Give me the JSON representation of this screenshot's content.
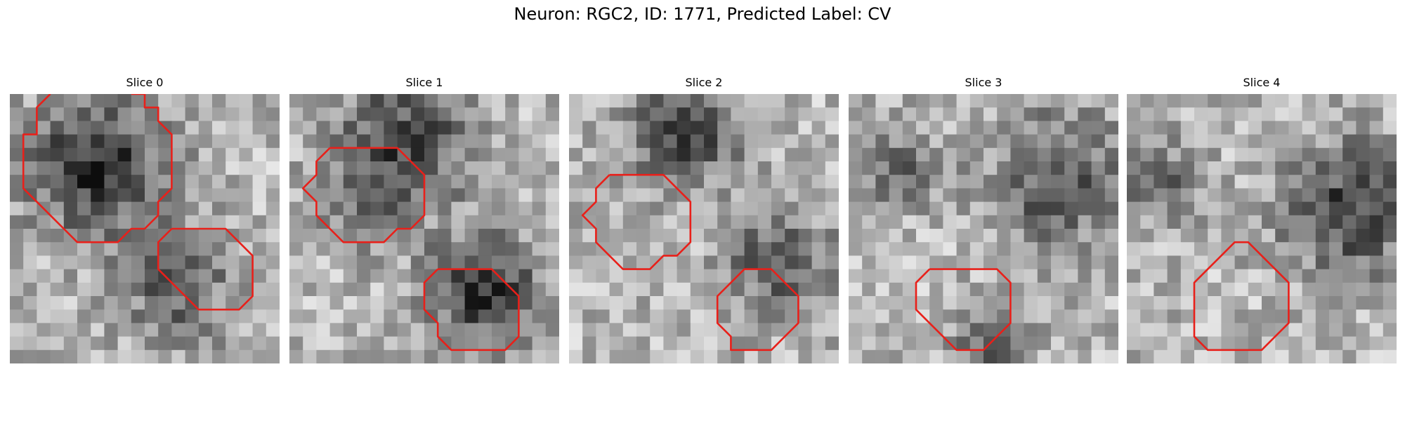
{
  "figure": {
    "title": "Neuron: RGC2, ID: 1771, Predicted Label: CV"
  },
  "colors": {
    "contour": "#e8201a",
    "colormap": "gray"
  },
  "panels": [
    {
      "title": "Slice 0",
      "contours": [
        [
          [
            3,
            0
          ],
          [
            2,
            1
          ],
          [
            2,
            2
          ],
          [
            2,
            3
          ],
          [
            1,
            3
          ],
          [
            1,
            4
          ],
          [
            1,
            5
          ],
          [
            1,
            6
          ],
          [
            1,
            7
          ],
          [
            2,
            8
          ],
          [
            3,
            9
          ],
          [
            4,
            10
          ],
          [
            5,
            11
          ],
          [
            6,
            11
          ],
          [
            7,
            11
          ],
          [
            8,
            11
          ],
          [
            9,
            10
          ],
          [
            10,
            10
          ],
          [
            11,
            9
          ],
          [
            11,
            8
          ],
          [
            12,
            7
          ],
          [
            12,
            6
          ],
          [
            12,
            5
          ],
          [
            12,
            4
          ],
          [
            12,
            3
          ],
          [
            11,
            2
          ],
          [
            11,
            1
          ],
          [
            10,
            1
          ],
          [
            10,
            0
          ],
          [
            9,
            0
          ],
          [
            9,
            0
          ]
        ],
        [
          [
            12,
            10
          ],
          [
            11,
            11
          ],
          [
            11,
            12
          ],
          [
            11,
            13
          ],
          [
            12,
            14
          ],
          [
            13,
            15
          ],
          [
            14,
            16
          ],
          [
            15,
            16
          ],
          [
            16,
            16
          ],
          [
            17,
            16
          ],
          [
            18,
            15
          ],
          [
            18,
            14
          ],
          [
            18,
            13
          ],
          [
            18,
            12
          ],
          [
            17,
            11
          ],
          [
            16,
            10
          ],
          [
            15,
            10
          ],
          [
            14,
            10
          ],
          [
            13,
            10
          ],
          [
            12,
            10
          ]
        ]
      ]
    },
    {
      "title": "Slice 1",
      "contours": [
        [
          [
            3,
            4
          ],
          [
            2,
            5
          ],
          [
            2,
            6
          ],
          [
            1,
            7
          ],
          [
            2,
            8
          ],
          [
            2,
            9
          ],
          [
            3,
            10
          ],
          [
            4,
            11
          ],
          [
            5,
            11
          ],
          [
            6,
            11
          ],
          [
            7,
            11
          ],
          [
            8,
            10
          ],
          [
            9,
            10
          ],
          [
            10,
            9
          ],
          [
            10,
            8
          ],
          [
            10,
            7
          ],
          [
            10,
            6
          ],
          [
            9,
            5
          ],
          [
            8,
            4
          ],
          [
            7,
            4
          ],
          [
            6,
            4
          ],
          [
            5,
            4
          ],
          [
            4,
            4
          ],
          [
            3,
            4
          ]
        ],
        [
          [
            11,
            13
          ],
          [
            10,
            14
          ],
          [
            10,
            15
          ],
          [
            10,
            16
          ],
          [
            11,
            17
          ],
          [
            11,
            18
          ],
          [
            12,
            19
          ],
          [
            13,
            19
          ],
          [
            14,
            19
          ],
          [
            15,
            19
          ],
          [
            16,
            19
          ],
          [
            17,
            18
          ],
          [
            17,
            17
          ],
          [
            17,
            16
          ],
          [
            17,
            15
          ],
          [
            16,
            14
          ],
          [
            15,
            13
          ],
          [
            14,
            13
          ],
          [
            13,
            13
          ],
          [
            12,
            13
          ],
          [
            11,
            13
          ]
        ]
      ]
    },
    {
      "title": "Slice 2",
      "contours": [
        [
          [
            3,
            6
          ],
          [
            2,
            7
          ],
          [
            2,
            8
          ],
          [
            1,
            9
          ],
          [
            2,
            10
          ],
          [
            2,
            11
          ],
          [
            3,
            12
          ],
          [
            4,
            13
          ],
          [
            5,
            13
          ],
          [
            6,
            13
          ],
          [
            7,
            12
          ],
          [
            8,
            12
          ],
          [
            9,
            11
          ],
          [
            9,
            10
          ],
          [
            9,
            9
          ],
          [
            9,
            8
          ],
          [
            8,
            7
          ],
          [
            7,
            6
          ],
          [
            6,
            6
          ],
          [
            5,
            6
          ],
          [
            4,
            6
          ],
          [
            3,
            6
          ]
        ],
        [
          [
            12,
            14
          ],
          [
            11,
            15
          ],
          [
            11,
            16
          ],
          [
            11,
            17
          ],
          [
            12,
            18
          ],
          [
            12,
            19
          ],
          [
            13,
            19
          ],
          [
            14,
            19
          ],
          [
            15,
            19
          ],
          [
            16,
            18
          ],
          [
            17,
            17
          ],
          [
            17,
            16
          ],
          [
            17,
            15
          ],
          [
            16,
            14
          ],
          [
            15,
            13
          ],
          [
            14,
            13
          ],
          [
            13,
            13
          ],
          [
            12,
            14
          ]
        ]
      ]
    },
    {
      "title": "Slice 3",
      "contours": [
        [
          [
            6,
            13
          ],
          [
            5,
            14
          ],
          [
            5,
            15
          ],
          [
            5,
            16
          ],
          [
            6,
            17
          ],
          [
            7,
            18
          ],
          [
            8,
            19
          ],
          [
            9,
            19
          ],
          [
            10,
            19
          ],
          [
            11,
            18
          ],
          [
            12,
            17
          ],
          [
            12,
            16
          ],
          [
            12,
            15
          ],
          [
            12,
            14
          ],
          [
            11,
            13
          ],
          [
            10,
            13
          ],
          [
            9,
            13
          ],
          [
            8,
            13
          ],
          [
            7,
            13
          ],
          [
            6,
            13
          ]
        ]
      ]
    },
    {
      "title": "Slice 4",
      "contours": [
        [
          [
            7,
            12
          ],
          [
            6,
            13
          ],
          [
            5,
            14
          ],
          [
            5,
            15
          ],
          [
            5,
            16
          ],
          [
            5,
            17
          ],
          [
            5,
            18
          ],
          [
            6,
            19
          ],
          [
            7,
            19
          ],
          [
            8,
            19
          ],
          [
            9,
            19
          ],
          [
            10,
            19
          ],
          [
            11,
            18
          ],
          [
            12,
            17
          ],
          [
            12,
            16
          ],
          [
            12,
            15
          ],
          [
            12,
            14
          ],
          [
            11,
            13
          ],
          [
            10,
            12
          ],
          [
            9,
            11
          ],
          [
            8,
            11
          ],
          [
            7,
            12
          ]
        ]
      ]
    }
  ]
}
